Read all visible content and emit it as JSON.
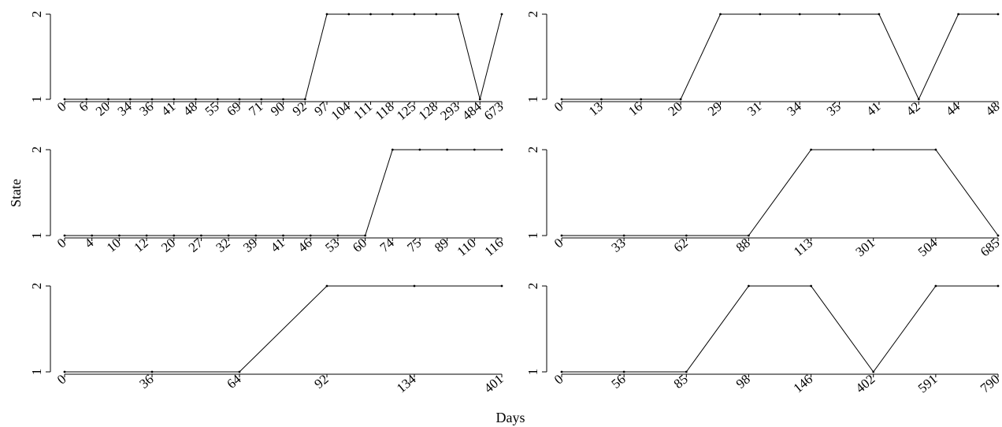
{
  "chart_data": {
    "type": "line",
    "xlabel": "Days",
    "ylabel": "State",
    "ylim": [
      1,
      2
    ],
    "y_ticks": [
      "1",
      "2"
    ],
    "grid": false,
    "panels": [
      {
        "x": [
          "0",
          "6",
          "20",
          "34",
          "36",
          "41",
          "48",
          "55",
          "69",
          "71",
          "90",
          "92",
          "97",
          "104",
          "111",
          "118",
          "125",
          "128",
          "293",
          "484",
          "673"
        ],
        "y": [
          1,
          1,
          1,
          1,
          1,
          1,
          1,
          1,
          1,
          1,
          1,
          1,
          2,
          2,
          2,
          2,
          2,
          2,
          2,
          1,
          2
        ]
      },
      {
        "x": [
          "0",
          "13",
          "16",
          "20",
          "29",
          "31",
          "34",
          "35",
          "41",
          "42",
          "44",
          "48"
        ],
        "y": [
          1,
          1,
          1,
          1,
          2,
          2,
          2,
          2,
          2,
          1,
          2,
          2
        ]
      },
      {
        "x": [
          "0",
          "4",
          "10",
          "12",
          "20",
          "27",
          "32",
          "39",
          "41",
          "46",
          "53",
          "60",
          "74",
          "75",
          "89",
          "110",
          "116"
        ],
        "y": [
          1,
          1,
          1,
          1,
          1,
          1,
          1,
          1,
          1,
          1,
          1,
          1,
          2,
          2,
          2,
          2,
          2
        ]
      },
      {
        "x": [
          "0",
          "33",
          "62",
          "88",
          "113",
          "301",
          "504",
          "685"
        ],
        "y": [
          1,
          1,
          1,
          1,
          2,
          2,
          2,
          1
        ]
      },
      {
        "x": [
          "0",
          "36",
          "64",
          "92",
          "134",
          "401"
        ],
        "y": [
          1,
          1,
          1,
          2,
          2,
          2
        ]
      },
      {
        "x": [
          "0",
          "56",
          "85",
          "98",
          "146",
          "402",
          "591",
          "790"
        ],
        "y": [
          1,
          1,
          1,
          2,
          2,
          1,
          2,
          2
        ]
      }
    ]
  }
}
